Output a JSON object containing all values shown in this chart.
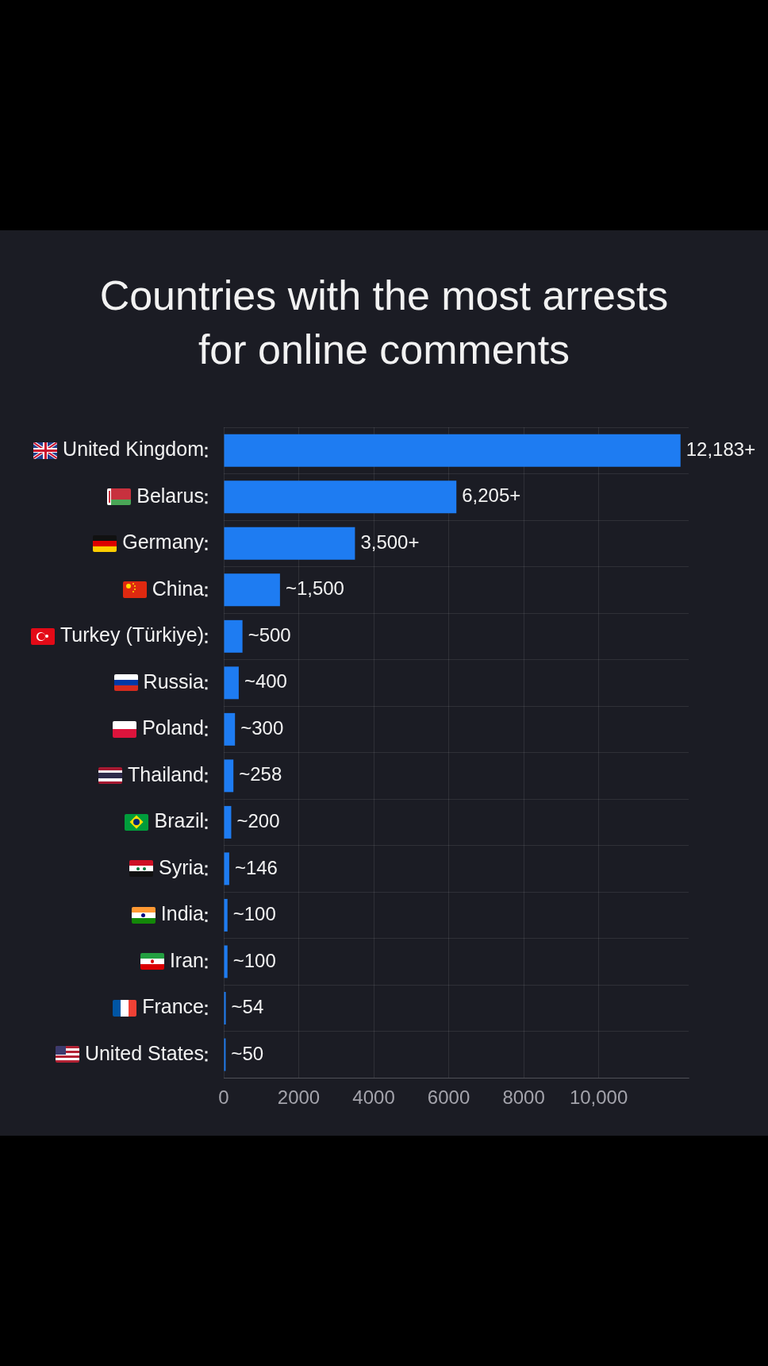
{
  "chart_data": {
    "type": "bar",
    "orientation": "horizontal",
    "title": "Countries with the most arrests for online comments",
    "categories": [
      "United Kingdom",
      "Belarus",
      "Germany",
      "China",
      "Turkey (Türkiye)",
      "Russia",
      "Poland",
      "Thailand",
      "Brazil",
      "Syria",
      "India",
      "Iran",
      "France",
      "United States"
    ],
    "values": [
      12183,
      6205,
      3500,
      1500,
      500,
      400,
      300,
      258,
      200,
      146,
      100,
      100,
      54,
      50
    ],
    "value_labels": [
      "12,183+",
      "6,205+",
      "3,500+",
      "~1,500",
      "~500",
      "~400",
      "~300",
      "~258",
      "~200",
      "~146",
      "~100",
      "~100",
      "~54",
      "~50"
    ],
    "color": "#1e7cf2",
    "xlim": [
      0,
      12400
    ],
    "xticks": [
      0,
      2000,
      4000,
      6000,
      8000,
      {
        "value": 10000,
        "label": "10,000"
      }
    ],
    "grid": true
  }
}
